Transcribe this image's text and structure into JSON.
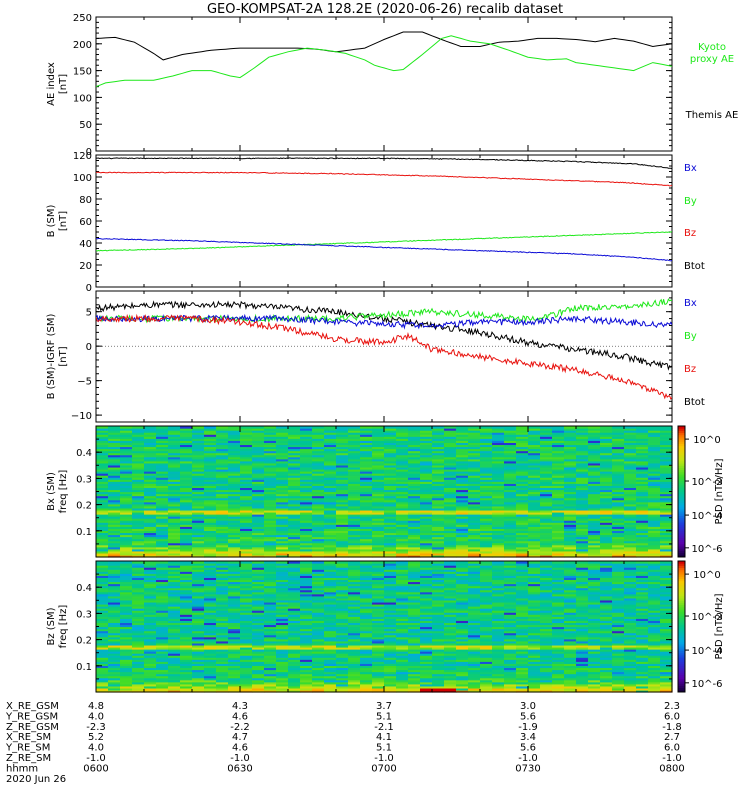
{
  "title": "GEO-KOMPSAT-2A 128.2E (2020-06-26) recalib dataset",
  "colors": {
    "black": "#000000",
    "red": "#e8120e",
    "green": "#1ee81a",
    "blue": "#0b0bd6"
  },
  "chart_data": [
    {
      "type": "line",
      "ylabel_lines": [
        "AE index",
        "[nT]"
      ],
      "ylim": [
        0,
        250
      ],
      "yticks": [
        0,
        50,
        100,
        150,
        200,
        250
      ],
      "x_range_minutes": [
        0,
        120
      ],
      "legend": [
        {
          "name": "Kyoto",
          "color": "green"
        },
        {
          "name": "proxy AE",
          "color": "green"
        },
        {
          "name": "Themis AE",
          "color": "black"
        }
      ],
      "series": [
        {
          "name": "Themis AE",
          "color": "black",
          "points": [
            [
              0,
              210
            ],
            [
              4,
              212
            ],
            [
              8,
              203
            ],
            [
              12,
              182
            ],
            [
              14,
              170
            ],
            [
              18,
              180
            ],
            [
              24,
              188
            ],
            [
              30,
              192
            ],
            [
              36,
              192
            ],
            [
              42,
              192
            ],
            [
              46,
              190
            ],
            [
              50,
              185
            ],
            [
              56,
              192
            ],
            [
              60,
              208
            ],
            [
              64,
              222
            ],
            [
              68,
              222
            ],
            [
              72,
              208
            ],
            [
              76,
              195
            ],
            [
              80,
              195
            ],
            [
              84,
              203
            ],
            [
              88,
              205
            ],
            [
              92,
              210
            ],
            [
              96,
              210
            ],
            [
              100,
              208
            ],
            [
              104,
              204
            ],
            [
              108,
              210
            ],
            [
              112,
              205
            ],
            [
              116,
              195
            ],
            [
              120,
              200
            ]
          ]
        },
        {
          "name": "Kyoto proxy AE",
          "color": "green",
          "points": [
            [
              0,
              120
            ],
            [
              2,
              127
            ],
            [
              6,
              132
            ],
            [
              12,
              132
            ],
            [
              16,
              140
            ],
            [
              20,
              150
            ],
            [
              24,
              150
            ],
            [
              28,
              140
            ],
            [
              30,
              137
            ],
            [
              33,
              155
            ],
            [
              36,
              175
            ],
            [
              40,
              185
            ],
            [
              44,
              192
            ],
            [
              48,
              188
            ],
            [
              52,
              182
            ],
            [
              56,
              170
            ],
            [
              58,
              160
            ],
            [
              62,
              150
            ],
            [
              64,
              152
            ],
            [
              68,
              180
            ],
            [
              72,
              210
            ],
            [
              74,
              215
            ],
            [
              78,
              205
            ],
            [
              82,
              200
            ],
            [
              86,
              188
            ],
            [
              90,
              175
            ],
            [
              94,
              170
            ],
            [
              98,
              172
            ],
            [
              100,
              165
            ],
            [
              104,
              160
            ],
            [
              108,
              155
            ],
            [
              112,
              150
            ],
            [
              116,
              165
            ],
            [
              120,
              158
            ]
          ]
        }
      ]
    },
    {
      "type": "line",
      "ylabel_lines": [
        "B (SM)",
        "[nT]"
      ],
      "ylim": [
        0,
        120
      ],
      "yticks": [
        0,
        20,
        40,
        60,
        80,
        100,
        120
      ],
      "legend": [
        {
          "name": "Bx",
          "color": "blue"
        },
        {
          "name": "By",
          "color": "green"
        },
        {
          "name": "Bz",
          "color": "red"
        },
        {
          "name": "Btot",
          "color": "black"
        }
      ],
      "series": [
        {
          "name": "Btot",
          "color": "black",
          "points": [
            [
              0,
              117
            ],
            [
              30,
              117
            ],
            [
              60,
              117
            ],
            [
              80,
              116
            ],
            [
              100,
              114
            ],
            [
              112,
              112
            ],
            [
              120,
              108
            ]
          ]
        },
        {
          "name": "Bz",
          "color": "red",
          "points": [
            [
              0,
              104
            ],
            [
              30,
              104
            ],
            [
              50,
              103
            ],
            [
              70,
              101
            ],
            [
              90,
              98
            ],
            [
              110,
              95
            ],
            [
              120,
              92
            ]
          ]
        },
        {
          "name": "By",
          "color": "green",
          "points": [
            [
              0,
              33
            ],
            [
              20,
              35
            ],
            [
              40,
              38
            ],
            [
              60,
              41
            ],
            [
              80,
              44
            ],
            [
              100,
              47
            ],
            [
              120,
              50
            ]
          ]
        },
        {
          "name": "Bx",
          "color": "blue",
          "points": [
            [
              0,
              44
            ],
            [
              20,
              42
            ],
            [
              40,
              39
            ],
            [
              60,
              36
            ],
            [
              80,
              33
            ],
            [
              100,
              30
            ],
            [
              112,
              27
            ],
            [
              120,
              24
            ]
          ]
        }
      ]
    },
    {
      "type": "line",
      "ylabel_lines": [
        "B (SM)-IGRF (SM)",
        "[nT]"
      ],
      "ylim": [
        -11,
        8
      ],
      "yticks": [
        -10,
        -5,
        0,
        5
      ],
      "legend": [
        {
          "name": "Bx",
          "color": "blue"
        },
        {
          "name": "By",
          "color": "green"
        },
        {
          "name": "Bz",
          "color": "red"
        },
        {
          "name": "Btot",
          "color": "black"
        }
      ],
      "series": [
        {
          "name": "Btot",
          "color": "black",
          "points": [
            [
              0,
              5.5
            ],
            [
              12,
              6
            ],
            [
              30,
              6
            ],
            [
              40,
              5.5
            ],
            [
              50,
              5
            ],
            [
              60,
              4
            ],
            [
              70,
              3
            ],
            [
              80,
              2
            ],
            [
              90,
              0.5
            ],
            [
              100,
              -0.5
            ],
            [
              110,
              -1.5
            ],
            [
              116,
              -2.5
            ],
            [
              120,
              -3
            ]
          ]
        },
        {
          "name": "By",
          "color": "green",
          "points": [
            [
              0,
              4
            ],
            [
              20,
              4
            ],
            [
              40,
              4
            ],
            [
              50,
              4
            ],
            [
              60,
              4.5
            ],
            [
              70,
              5
            ],
            [
              80,
              4.5
            ],
            [
              90,
              4
            ],
            [
              95,
              4.5
            ],
            [
              100,
              5.5
            ],
            [
              110,
              5.8
            ],
            [
              120,
              6.5
            ]
          ]
        },
        {
          "name": "Bx",
          "color": "blue",
          "points": [
            [
              0,
              4
            ],
            [
              20,
              4
            ],
            [
              30,
              4
            ],
            [
              40,
              4
            ],
            [
              50,
              3.5
            ],
            [
              60,
              3.2
            ],
            [
              70,
              3
            ],
            [
              80,
              3.5
            ],
            [
              90,
              3.5
            ],
            [
              100,
              4
            ],
            [
              110,
              3.5
            ],
            [
              120,
              3
            ]
          ]
        },
        {
          "name": "Bz",
          "color": "red",
          "points": [
            [
              0,
              4
            ],
            [
              20,
              4
            ],
            [
              30,
              3.5
            ],
            [
              40,
              2.5
            ],
            [
              50,
              1
            ],
            [
              60,
              0.5
            ],
            [
              65,
              1.5
            ],
            [
              70,
              -0.5
            ],
            [
              80,
              -1.5
            ],
            [
              90,
              -2.5
            ],
            [
              100,
              -3.5
            ],
            [
              110,
              -5
            ],
            [
              116,
              -6.5
            ],
            [
              120,
              -7.5
            ]
          ]
        }
      ]
    },
    {
      "type": "heatmap",
      "ylabel_lines": [
        "Bx (SM)",
        "freq [Hz]"
      ],
      "ylim": [
        0,
        0.5
      ],
      "yticks": [
        0.1,
        0.2,
        0.3,
        0.4
      ],
      "colorbar": {
        "label": "PSD [nT2/Hz]",
        "ticks": [
          "10^0",
          "10^-2",
          "10^-4",
          "10^-6"
        ]
      }
    },
    {
      "type": "heatmap",
      "ylabel_lines": [
        "Bz (SM)",
        "freq [Hz]"
      ],
      "ylim": [
        0,
        0.5
      ],
      "yticks": [
        0.1,
        0.2,
        0.3,
        0.4
      ],
      "colorbar": {
        "label": "PSD [nT2/Hz]",
        "ticks": [
          "10^0",
          "10^-2",
          "10^-4",
          "10^-6"
        ]
      }
    }
  ],
  "ephemeris": {
    "rows": [
      {
        "label": "X_RE_GSM",
        "values": [
          "4.8",
          "4.3",
          "3.7",
          "3.0",
          "2.3"
        ]
      },
      {
        "label": "Y_RE_GSM",
        "values": [
          "4.0",
          "4.6",
          "5.1",
          "5.6",
          "6.0"
        ]
      },
      {
        "label": "Z_RE_GSM",
        "values": [
          "-2.3",
          "-2.2",
          "-2.1",
          "-1.9",
          "-1.8"
        ]
      },
      {
        "label": "X_RE_SM",
        "values": [
          "5.2",
          "4.7",
          "4.1",
          "3.4",
          "2.7"
        ]
      },
      {
        "label": "Y_RE_SM",
        "values": [
          "4.0",
          "4.6",
          "5.1",
          "5.6",
          "6.0"
        ]
      },
      {
        "label": "Z_RE_SM",
        "values": [
          "-1.0",
          "-1.0",
          "-1.0",
          "-1.0",
          "-1.0"
        ]
      },
      {
        "label": "hhmm",
        "values": [
          "0600",
          "0630",
          "0700",
          "0730",
          "0800"
        ]
      }
    ],
    "date": "2020 Jun 26"
  }
}
